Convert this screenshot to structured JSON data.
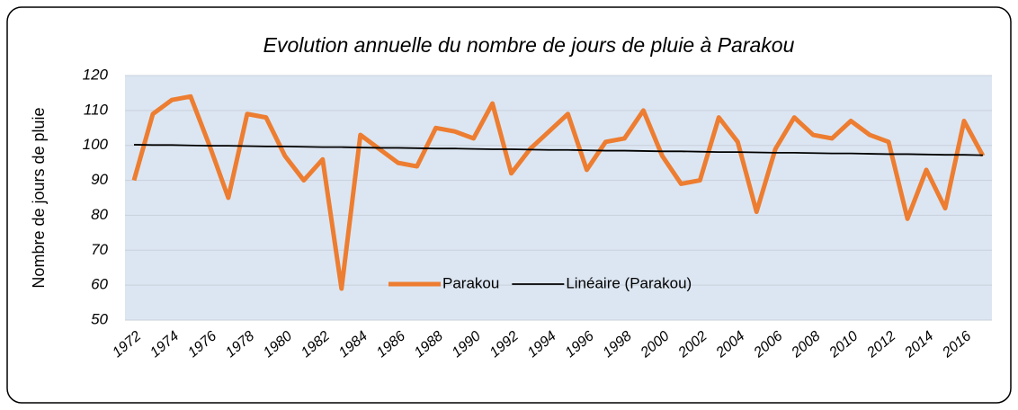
{
  "chart_data": {
    "type": "line",
    "title": "Evolution annuelle du nombre de jours de pluie à Parakou",
    "y_label": "Nombre de jours de pluie",
    "categories": [
      "1972",
      null,
      "1974",
      null,
      "1976",
      null,
      "1978",
      null,
      "1980",
      null,
      "1982",
      null,
      "1984",
      null,
      "1986",
      null,
      "1988",
      null,
      "1990",
      null,
      "1992",
      null,
      "1994",
      null,
      "1996",
      null,
      "1998",
      null,
      "2000",
      null,
      "2002",
      null,
      "2004",
      null,
      "2006",
      null,
      "2008",
      null,
      "2010",
      null,
      "2012",
      null,
      "2014",
      null,
      "2016",
      null
    ],
    "series": [
      {
        "name": "Parakou",
        "color": "#ed7d31",
        "values": [
          90,
          109,
          113,
          114,
          100,
          85,
          109,
          108,
          97,
          90,
          96,
          59,
          103,
          99,
          95,
          94,
          105,
          104,
          102,
          112,
          92,
          99,
          104,
          109,
          93,
          101,
          102,
          110,
          97,
          89,
          90,
          108,
          101,
          81,
          99,
          108,
          103,
          102,
          107,
          103,
          101,
          79,
          93,
          82,
          107,
          97
        ]
      },
      {
        "name": "Linéaire (Parakou)",
        "color": "#000000",
        "values": [
          100.2,
          100.1,
          100.1,
          100.0,
          99.9,
          99.9,
          99.8,
          99.7,
          99.7,
          99.6,
          99.5,
          99.5,
          99.4,
          99.3,
          99.3,
          99.2,
          99.1,
          99.1,
          99.0,
          98.9,
          98.9,
          98.8,
          98.7,
          98.7,
          98.6,
          98.5,
          98.5,
          98.4,
          98.3,
          98.3,
          98.2,
          98.1,
          98.1,
          98.0,
          97.9,
          97.9,
          97.8,
          97.7,
          97.7,
          97.6,
          97.5,
          97.5,
          97.4,
          97.3,
          97.3,
          97.2
        ]
      }
    ],
    "ylim": [
      50,
      120
    ],
    "yticks": [
      50,
      60,
      70,
      80,
      90,
      100,
      110,
      120
    ],
    "grid": true,
    "legend": "bottom"
  }
}
